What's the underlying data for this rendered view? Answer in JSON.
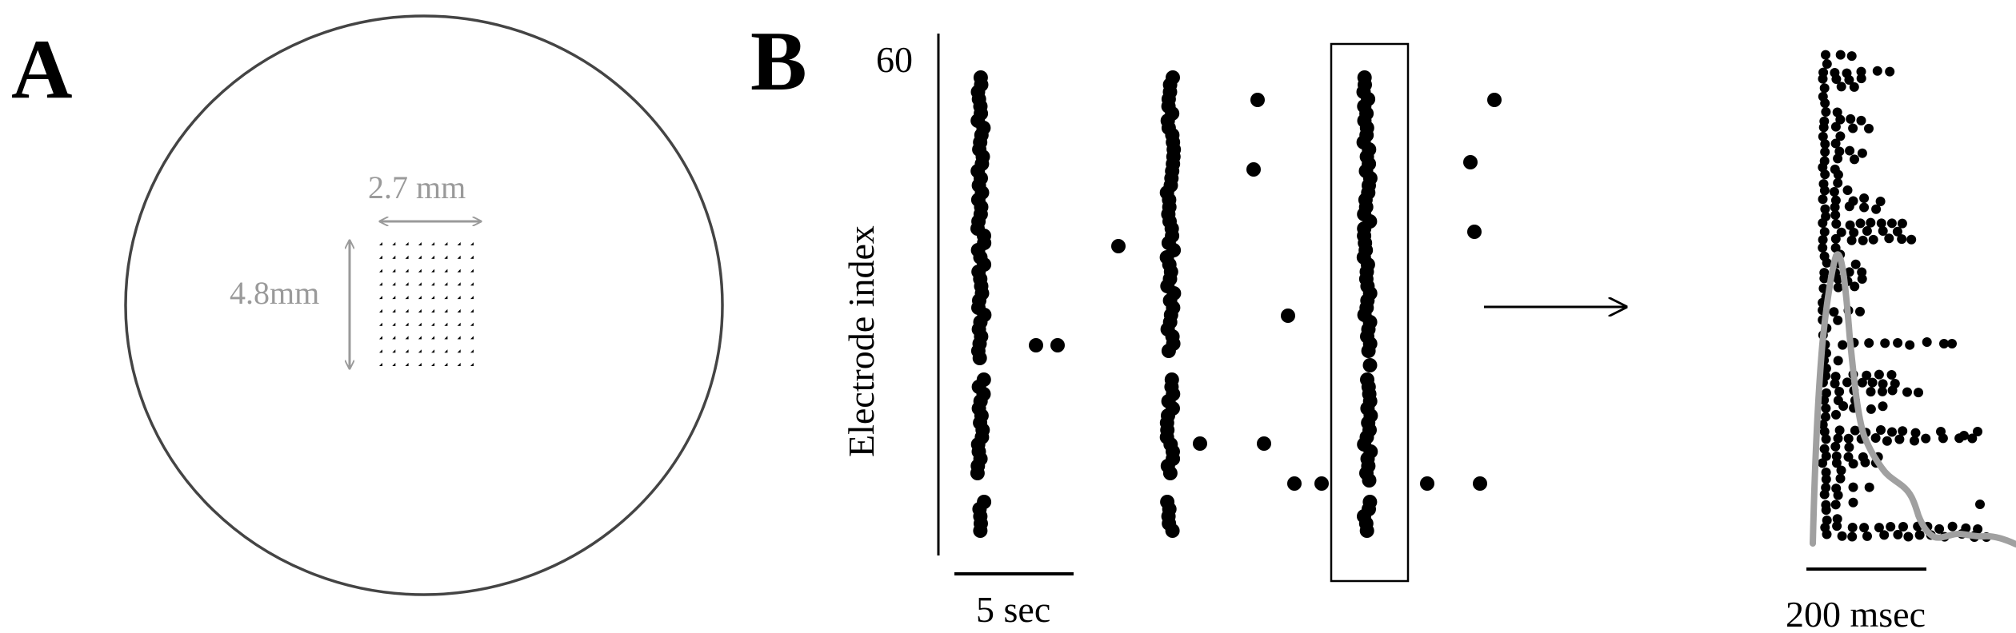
{
  "panel_a": {
    "letter": "A",
    "width_label": "2.7 mm",
    "height_label": "4.8mm",
    "grid": {
      "cols": 8,
      "rows": 10
    }
  },
  "panel_b": {
    "letter": "B",
    "y_axis_label": "Electrode index",
    "y_tick_top": "60",
    "raster_scalebar_label": "5 sec",
    "zoom_scalebar_label": "200 msec"
  },
  "colors": {
    "ink": "#000000",
    "annotation_grey": "#9a9a9a",
    "rate_trace_grey": "#a0a0a0",
    "dish_outline": "#444444"
  },
  "icons": {
    "double_arrow_horizontal": "double-headed-arrow-icon",
    "double_arrow_vertical": "double-headed-arrow-icon",
    "zoom_arrow": "right-arrow-icon"
  }
}
